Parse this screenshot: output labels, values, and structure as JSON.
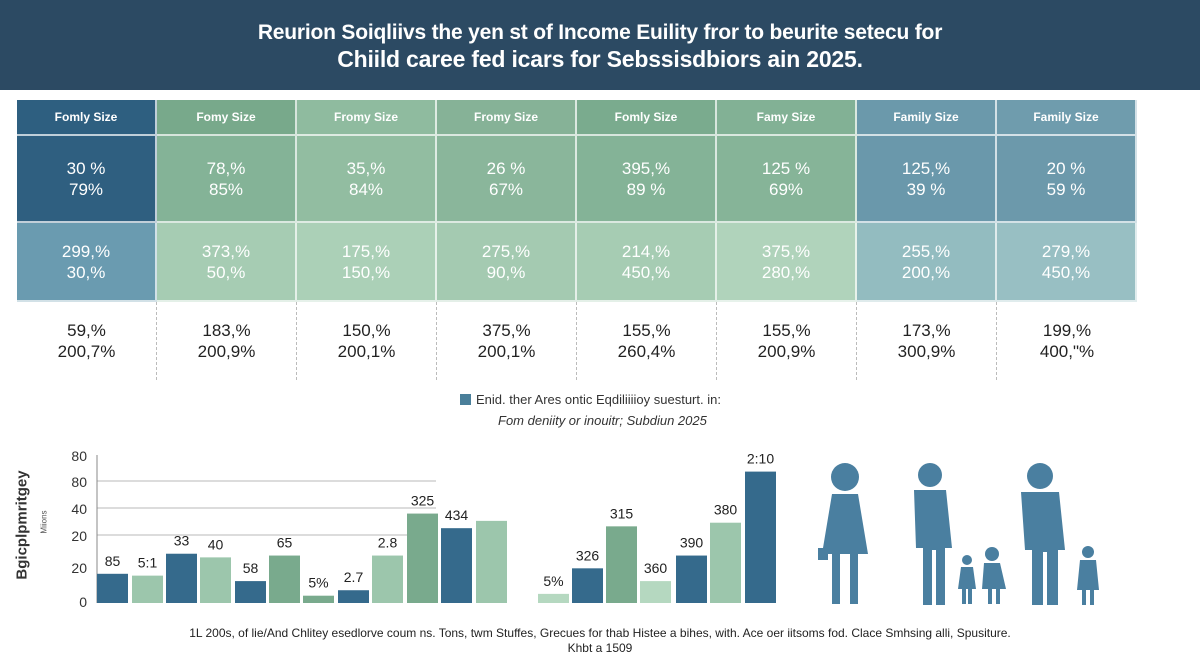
{
  "title": {
    "line1": "Reurion Soiqliivs the yen st of Income Euility fror to beurite setecu for",
    "line2": "Chiild caree fed icars for Sebssisdbiors ain 2025."
  },
  "table": {
    "headers": [
      "Fomly Size",
      "Fomy Size",
      "Fromy Size",
      "Fromy Size",
      "Fomly Size",
      "Famy Size",
      "Family Size",
      "Family Size"
    ],
    "header_colors": [
      "#2e5f80",
      "#78a98b",
      "#8fbb9f",
      "#86b297",
      "#7aab8e",
      "#82b195",
      "#6b99ab",
      "#6f9cad"
    ],
    "rows": [
      {
        "colors": [
          "#2f5f80",
          "#84b397",
          "#92bda1",
          "#8ab69b",
          "#84b397",
          "#86b498",
          "#6a98ab",
          "#6c99ab"
        ],
        "cells": [
          [
            "30 %",
            "79%"
          ],
          [
            "78,%",
            "85%"
          ],
          [
            "35,%",
            "84%"
          ],
          [
            "26 %",
            "67%"
          ],
          [
            "395,%",
            "89 %"
          ],
          [
            "125 %",
            "69%"
          ],
          [
            "125,%",
            "39 %"
          ],
          [
            "20 %",
            "59 %"
          ]
        ]
      },
      {
        "colors": [
          "#6a9bb0",
          "#a6ccb3",
          "#abd0b7",
          "#a4cab1",
          "#a6ccb3",
          "#b0d3bb",
          "#93bcc0",
          "#98bfc3"
        ],
        "cells": [
          [
            "299,%",
            "30,%"
          ],
          [
            "373,%",
            "50,%"
          ],
          [
            "175,%",
            "150,%"
          ],
          [
            "275,%",
            "90,%"
          ],
          [
            "214,%",
            "450,%"
          ],
          [
            "375,%",
            "280,%"
          ],
          [
            "255,%",
            "200,%"
          ],
          [
            "279,%",
            "450,%"
          ]
        ]
      },
      {
        "cells": [
          [
            "59,%",
            "200,7%"
          ],
          [
            "183,%",
            "200,9%"
          ],
          [
            "150,%",
            "200,1%"
          ],
          [
            "375,%",
            "200,1%"
          ],
          [
            "155,%",
            "260,4%"
          ],
          [
            "155,%",
            "200,9%"
          ],
          [
            "173,%",
            "300,9%"
          ],
          [
            "199,%",
            "400,\"%"
          ]
        ]
      }
    ]
  },
  "legend": {
    "label": "Enid. ther Ares ontic Eqdiliiiioy suesturt. in:",
    "sub": "Fom deniity or inouitr; Subdiun 2025",
    "color": "#4a7f9a"
  },
  "chart_data": {
    "type": "bar",
    "ylabel": "Bgicplpmritgey",
    "ylabel_sub": "Miions",
    "yticks": [
      "80",
      "80",
      "40",
      "20",
      "20",
      "0"
    ],
    "grid": true,
    "bars": [
      {
        "value": 16,
        "label": "85",
        "color": "#356a8c"
      },
      {
        "value": 15,
        "label": "5:1",
        "color": "#9cc6ac"
      },
      {
        "value": 27,
        "label": "33",
        "color": "#356a8c"
      },
      {
        "value": 25,
        "label": "40",
        "color": "#9cc6ac"
      },
      {
        "value": 12,
        "label": "58",
        "color": "#356a8c"
      },
      {
        "value": 26,
        "label": "65",
        "color": "#79aa8d"
      },
      {
        "value": 4,
        "label": "5%",
        "color": "#79aa8d"
      },
      {
        "value": 7,
        "label": "2.7",
        "color": "#356a8c"
      },
      {
        "value": 26,
        "label": "2.8",
        "color": "#9cc6ac"
      },
      {
        "value": 49,
        "label": "325",
        "color": "#79aa8d"
      },
      {
        "value": 41,
        "label": "434",
        "color": "#356a8c"
      },
      {
        "value": 45,
        "label": "",
        "color": "#9cc6ac"
      },
      {
        "value": 5,
        "label": "5%",
        "color": "#b5d8c0"
      },
      {
        "value": 19,
        "label": "326",
        "color": "#356a8c"
      },
      {
        "value": 42,
        "label": "315",
        "color": "#79aa8d"
      },
      {
        "value": 12,
        "label": "360",
        "color": "#b5d8c0"
      },
      {
        "value": 26,
        "label": "390",
        "color": "#356a8c"
      },
      {
        "value": 44,
        "label": "380",
        "color": "#9cc6ac"
      },
      {
        "value": 72,
        "label": "2:10",
        "color": "#356a8c"
      }
    ]
  },
  "people_color": "#4a7fa0",
  "footer": {
    "line1": "1L 200s, of lie/And Chlitey esedlorve coum ns. Tons, twm Stuffes, Grecues for thab Histee a bihes, with. Ace oer iitsoms fod. Clace Smhsing alli, Spusiture.",
    "line2": "Khbt a 1509"
  }
}
